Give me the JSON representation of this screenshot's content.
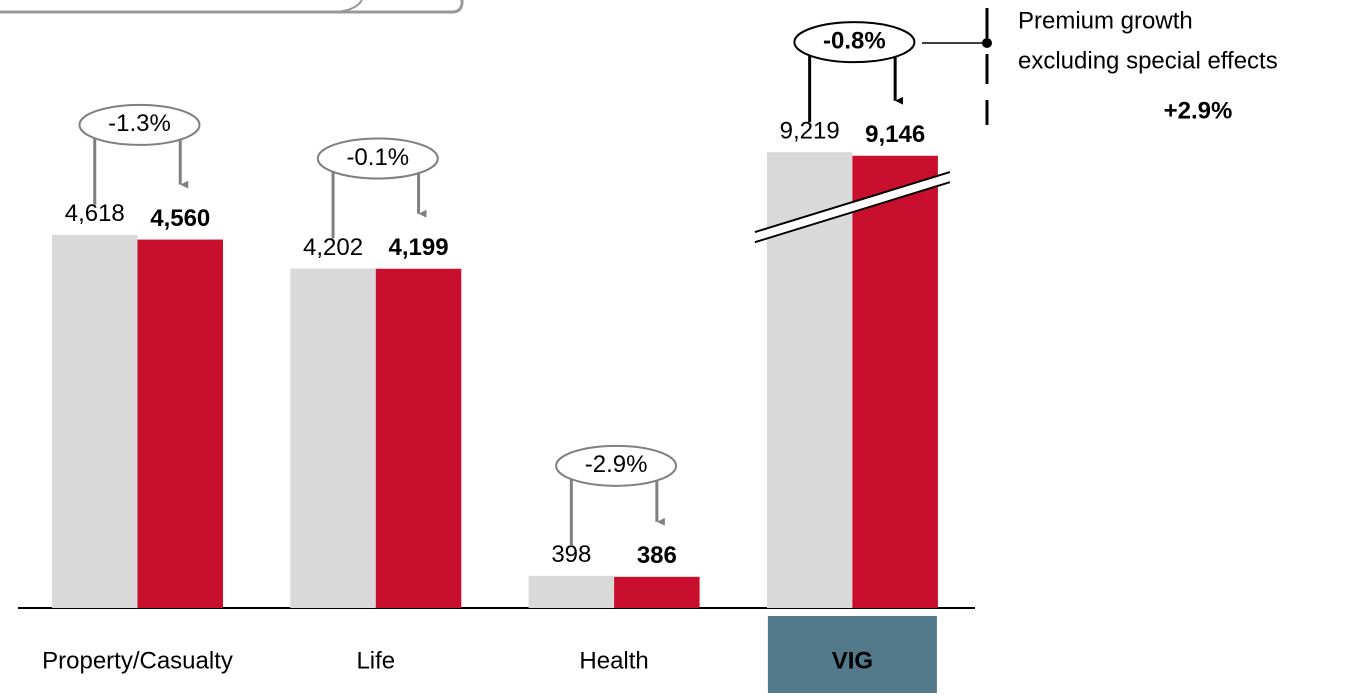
{
  "chart_data": {
    "type": "bar",
    "categories": [
      "Property/Casualty",
      "Life",
      "Health",
      "VIG"
    ],
    "series": [
      {
        "color": "#d9d9d9",
        "values": [
          4618,
          4202,
          398,
          9219
        ],
        "value_labels": [
          "4,618",
          "4,202",
          "398",
          "9,219"
        ]
      },
      {
        "color": "#c8102e",
        "values": [
          4560,
          4199,
          386,
          9146
        ],
        "value_labels": [
          "4,560",
          "4,199",
          "386",
          "9,146"
        ]
      }
    ],
    "changes": [
      "-1.3%",
      "-0.1%",
      "-2.9%",
      "-0.8%"
    ],
    "ylim": [
      0,
      7525
    ],
    "annotation": {
      "lines": [
        "Premium growth",
        "excluding special effects"
      ],
      "value": "+2.9%"
    }
  }
}
